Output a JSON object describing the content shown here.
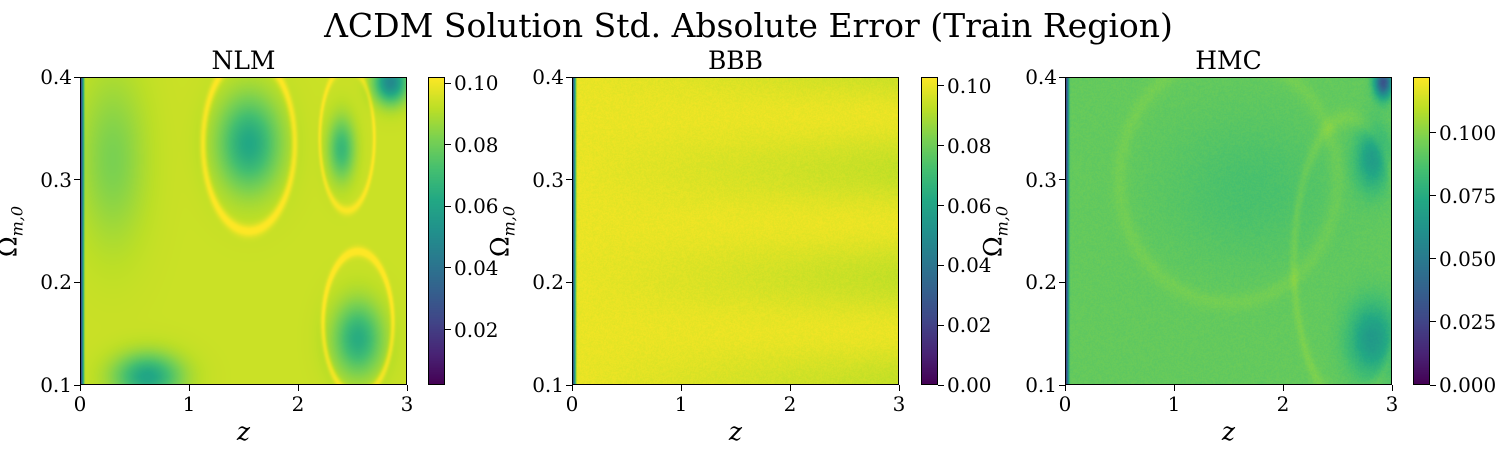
{
  "figure": {
    "title": "ΛCDM Solution Std. Absolute Error (Train Region)"
  },
  "chart_data": [
    {
      "type": "heatmap",
      "title": "NLM",
      "xlabel": "z",
      "ylabel_main": "Ω",
      "ylabel_sub": "m,0",
      "xlim": [
        0,
        3
      ],
      "ylim": [
        0.1,
        0.4
      ],
      "xticks": [
        "0",
        "1",
        "2",
        "3"
      ],
      "yticks": [
        "0.1",
        "0.2",
        "0.3",
        "0.4"
      ],
      "colorbar": {
        "range": [
          0.002,
          0.102
        ],
        "ticks": [
          "0.02",
          "0.04",
          "0.06",
          "0.08",
          "0.10"
        ],
        "tick_values": [
          0.02,
          0.04,
          0.06,
          0.08,
          0.1
        ]
      },
      "colormap": "viridis",
      "pattern": "smooth field near max (~0.09–0.10) with bright ring contours; low spots at (z≈1.5, Ω≈0.34), (z≈2.5, Ω≈0.15), (z≈0.6, Ω≈0.11), top-right corner; near 0 at z=0"
    },
    {
      "type": "heatmap",
      "title": "BBB",
      "xlabel": "z",
      "ylabel_main": "Ω",
      "ylabel_sub": "m,0",
      "xlim": [
        0,
        3
      ],
      "ylim": [
        0.1,
        0.4
      ],
      "xticks": [
        "0",
        "1",
        "2",
        "3"
      ],
      "yticks": [
        "0.1",
        "0.2",
        "0.3",
        "0.4"
      ],
      "colorbar": {
        "range": [
          0.0,
          0.103
        ],
        "ticks": [
          "0.00",
          "0.02",
          "0.04",
          "0.06",
          "0.08",
          "0.10"
        ],
        "tick_values": [
          0.0,
          0.02,
          0.04,
          0.06,
          0.08,
          0.1
        ]
      },
      "colormap": "viridis",
      "pattern": "nearly uniform ~0.10 with faint horizontal banding at larger z; near 0 at z=0"
    },
    {
      "type": "heatmap",
      "title": "HMC",
      "xlabel": "z",
      "ylabel_main": "Ω",
      "ylabel_sub": "m,0",
      "xlim": [
        0,
        3
      ],
      "ylim": [
        0.1,
        0.4
      ],
      "xticks": [
        "0",
        "1",
        "2",
        "3"
      ],
      "yticks": [
        "0.1",
        "0.2",
        "0.3",
        "0.4"
      ],
      "colorbar": {
        "range": [
          0.0,
          0.122
        ],
        "ticks": [
          "0.000",
          "0.025",
          "0.050",
          "0.075",
          "0.100"
        ],
        "tick_values": [
          0.0,
          0.025,
          0.05,
          0.075,
          0.1
        ]
      },
      "colormap": "viridis",
      "pattern": "mostly ~0.09–0.10 with faint ring contours; lower pockets at (z≈2.8, Ω≈0.15) and (z≈2.8, Ω≈0.32); dark streak near top-right; near 0 at z=0"
    }
  ]
}
